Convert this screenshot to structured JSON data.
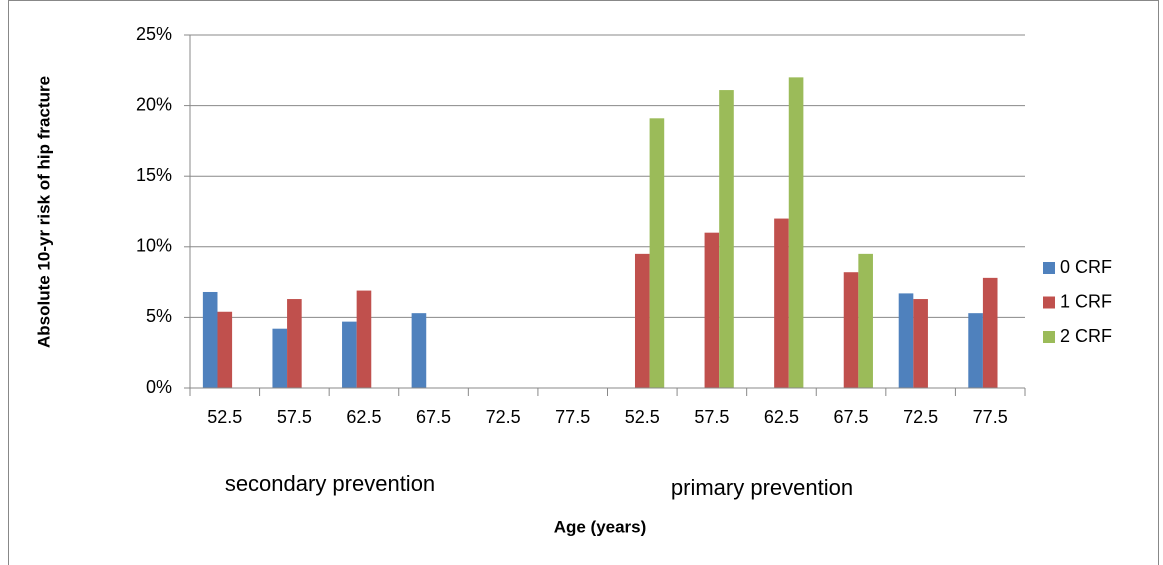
{
  "chart_data": {
    "type": "bar",
    "y_label": "Absolute 10-yr risk of hip fracture",
    "x_label": "Age (years)",
    "categories": [
      "52.5",
      "57.5",
      "62.5",
      "67.5",
      "72.5",
      "77.5",
      "52.5",
      "57.5",
      "62.5",
      "67.5",
      "72.5",
      "77.5"
    ],
    "group_labels": [
      "secondary prevention",
      "primary prevention"
    ],
    "series": [
      {
        "name": "0 CRF",
        "color": "#4f81bd",
        "values": [
          6.8,
          4.2,
          4.7,
          5.3,
          null,
          null,
          null,
          null,
          null,
          null,
          6.7,
          5.3
        ]
      },
      {
        "name": "1 CRF",
        "color": "#c0504d",
        "values": [
          5.4,
          6.3,
          6.9,
          null,
          null,
          null,
          9.5,
          11,
          12,
          8.2,
          6.3,
          7.8
        ]
      },
      {
        "name": "2 CRF",
        "color": "#9bbb59",
        "values": [
          null,
          null,
          null,
          null,
          null,
          null,
          19.1,
          21.1,
          22,
          9.5,
          null,
          null
        ]
      }
    ],
    "ylim": [
      0,
      25
    ],
    "yticks": [
      {
        "value": 0,
        "label": "0%"
      },
      {
        "value": 5,
        "label": "5%"
      },
      {
        "value": 10,
        "label": "10%"
      },
      {
        "value": 15,
        "label": "15%"
      },
      {
        "value": 20,
        "label": "20%"
      },
      {
        "value": 25,
        "label": "25%"
      }
    ],
    "grid": true,
    "legend": "right"
  }
}
